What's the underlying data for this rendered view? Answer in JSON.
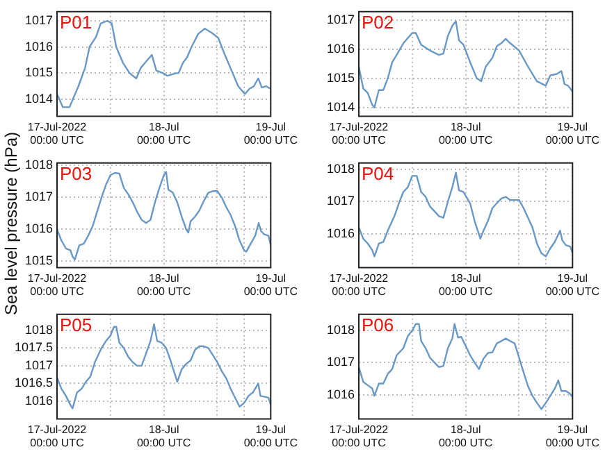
{
  "chart_data": [
    {
      "type": "line",
      "title": "P01",
      "color": "#6a98c4",
      "grid": true,
      "xlim": [
        "2022-07-17T00:00",
        "2022-07-19T00:00"
      ],
      "xticks": [
        {
          "value": "2022-07-17T00:00",
          "label": "17-Jul-2022\n00:00 UTC"
        },
        {
          "value": "2022-07-17T12:00",
          "label": null
        },
        {
          "value": "2022-07-18T00:00",
          "label": "18-Jul\n00:00 UTC"
        },
        {
          "value": "2022-07-18T12:00",
          "label": null
        },
        {
          "value": "2022-07-18T18:00",
          "label": null
        },
        {
          "value": "2022-07-19T00:00",
          "label": "19-Jul\n00:00 UTC"
        }
      ],
      "ylim": [
        1013.35,
        1017.35
      ],
      "yticks": [
        1014,
        1015,
        1016,
        1017
      ],
      "x": [
        "2022-07-17T00:00",
        "2022-07-17T00:48",
        "2022-07-17T01:18",
        "2022-07-17T02:48",
        "2022-07-17T03:18",
        "2022-07-17T04:48",
        "2022-07-17T06:18",
        "2022-07-17T07:18",
        "2022-07-17T08:48",
        "2022-07-17T09:48",
        "2022-07-17T11:18",
        "2022-07-17T12:18",
        "2022-07-17T13:18",
        "2022-07-17T14:48",
        "2022-07-17T16:18",
        "2022-07-17T17:48",
        "2022-07-17T18:48",
        "2022-07-17T19:48",
        "2022-07-17T21:18",
        "2022-07-17T22:18",
        "2022-07-17T23:48",
        "2022-07-18T00:48",
        "2022-07-18T02:48",
        "2022-07-18T03:18",
        "2022-07-18T04:18",
        "2022-07-18T05:12",
        "2022-07-18T06:12",
        "2022-07-18T07:42",
        "2022-07-18T09:12",
        "2022-07-18T10:42",
        "2022-07-18T12:12",
        "2022-07-18T13:42",
        "2022-07-18T15:12",
        "2022-07-18T16:42",
        "2022-07-18T18:12",
        "2022-07-18T19:12",
        "2022-07-18T20:12",
        "2022-07-18T21:12",
        "2022-07-18T22:00",
        "2022-07-18T23:00",
        "2022-07-19T00:00"
      ],
      "values": [
        1014.2,
        1013.9,
        1013.7,
        1013.7,
        1013.9,
        1014.5,
        1015.2,
        1016,
        1016.4,
        1016.9,
        1017,
        1016.9,
        1016,
        1015.4,
        1015,
        1014.8,
        1015.2,
        1015.4,
        1015.7,
        1015.1,
        1015,
        1014.9,
        1015,
        1015,
        1015.4,
        1015.6,
        1016,
        1016.5,
        1016.7,
        1016.55,
        1016.35,
        1015.7,
        1015.1,
        1014.5,
        1014.2,
        1014.4,
        1014.5,
        1014.8,
        1014.45,
        1014.5,
        1014.4
      ]
    },
    {
      "type": "line",
      "title": "P02",
      "color": "#6a98c4",
      "grid": true,
      "xlim": [
        "2022-07-17T00:00",
        "2022-07-19T00:00"
      ],
      "xticks": [
        {
          "value": "2022-07-17T00:00",
          "label": "17-Jul-2022\n00:00 UTC"
        },
        {
          "value": "2022-07-17T12:00",
          "label": null
        },
        {
          "value": "2022-07-18T00:00",
          "label": "18-Jul\n00:00 UTC"
        },
        {
          "value": "2022-07-18T12:00",
          "label": null
        },
        {
          "value": "2022-07-18T18:00",
          "label": null
        },
        {
          "value": "2022-07-19T00:00",
          "label": "19-Jul\n00:00 UTC"
        }
      ],
      "ylim": [
        1013.7,
        1017.28
      ],
      "yticks": [
        1014,
        1015,
        1016,
        1017
      ],
      "x": [
        "2022-07-17T00:00",
        "2022-07-17T01:00",
        "2022-07-17T02:00",
        "2022-07-17T03:00",
        "2022-07-17T03:30",
        "2022-07-17T04:30",
        "2022-07-17T05:30",
        "2022-07-17T06:30",
        "2022-07-17T07:30",
        "2022-07-17T08:30",
        "2022-07-17T10:00",
        "2022-07-17T12:00",
        "2022-07-17T12:48",
        "2022-07-17T14:00",
        "2022-07-17T16:00",
        "2022-07-17T18:00",
        "2022-07-17T19:00",
        "2022-07-17T20:00",
        "2022-07-17T21:00",
        "2022-07-17T21:48",
        "2022-07-17T22:30",
        "2022-07-17T23:30",
        "2022-07-18T01:00",
        "2022-07-18T02:30",
        "2022-07-18T03:30",
        "2022-07-18T04:30",
        "2022-07-18T06:00",
        "2022-07-18T07:00",
        "2022-07-18T08:00",
        "2022-07-18T09:00",
        "2022-07-18T10:00",
        "2022-07-18T12:00",
        "2022-07-18T14:00",
        "2022-07-18T16:00",
        "2022-07-18T18:00",
        "2022-07-18T19:00",
        "2022-07-18T20:30",
        "2022-07-18T21:30",
        "2022-07-18T22:12",
        "2022-07-18T23:00",
        "2022-07-19T00:00"
      ],
      "values": [
        1015.4,
        1014.65,
        1014.5,
        1014.1,
        1014,
        1014.6,
        1014.6,
        1015,
        1015.55,
        1015.8,
        1016.2,
        1016.55,
        1016.55,
        1016.15,
        1015.95,
        1015.8,
        1015.85,
        1016.45,
        1016.8,
        1016.95,
        1016.3,
        1016.15,
        1015.55,
        1015,
        1014.9,
        1015.4,
        1015.7,
        1016.1,
        1016.2,
        1016.35,
        1016.2,
        1015.95,
        1015.4,
        1014.9,
        1014.75,
        1015.1,
        1015.15,
        1015.25,
        1014.8,
        1014.75,
        1014.55
      ]
    },
    {
      "type": "line",
      "title": "P03",
      "ylabel": "Sea level pressure (hPa)",
      "color": "#6a98c4",
      "grid": true,
      "xlim": [
        "2022-07-17T00:00",
        "2022-07-19T00:00"
      ],
      "xticks": [
        {
          "value": "2022-07-17T00:00",
          "label": "17-Jul-2022\n00:00 UTC"
        },
        {
          "value": "2022-07-17T12:00",
          "label": null
        },
        {
          "value": "2022-07-18T00:00",
          "label": "18-Jul\n00:00 UTC"
        },
        {
          "value": "2022-07-18T12:00",
          "label": null
        },
        {
          "value": "2022-07-18T18:00",
          "label": null
        },
        {
          "value": "2022-07-19T00:00",
          "label": "19-Jul\n00:00 UTC"
        }
      ],
      "ylim": [
        1014.8,
        1018.08
      ],
      "yticks": [
        1015,
        1016,
        1017,
        1018
      ],
      "x": [
        "2022-07-17T00:00",
        "2022-07-17T01:00",
        "2022-07-17T02:00",
        "2022-07-17T03:00",
        "2022-07-17T03:30",
        "2022-07-17T04:00",
        "2022-07-17T05:00",
        "2022-07-17T06:00",
        "2022-07-17T07:00",
        "2022-07-17T08:00",
        "2022-07-17T09:00",
        "2022-07-17T10:00",
        "2022-07-17T11:00",
        "2022-07-17T12:00",
        "2022-07-17T13:00",
        "2022-07-17T14:00",
        "2022-07-17T15:00",
        "2022-07-17T16:00",
        "2022-07-17T17:00",
        "2022-07-17T18:00",
        "2022-07-17T19:00",
        "2022-07-17T20:00",
        "2022-07-17T21:00",
        "2022-07-17T22:00",
        "2022-07-17T23:00",
        "2022-07-18T00:00",
        "2022-07-18T00:30",
        "2022-07-18T01:00",
        "2022-07-18T02:00",
        "2022-07-18T03:00",
        "2022-07-18T04:00",
        "2022-07-18T05:00",
        "2022-07-18T05:30",
        "2022-07-18T06:00",
        "2022-07-18T07:00",
        "2022-07-18T08:00",
        "2022-07-18T09:00",
        "2022-07-18T10:00",
        "2022-07-18T11:00",
        "2022-07-18T12:00",
        "2022-07-18T13:00",
        "2022-07-18T14:00",
        "2022-07-18T15:00",
        "2022-07-18T16:00",
        "2022-07-18T17:00",
        "2022-07-18T18:00",
        "2022-07-18T18:30",
        "2022-07-18T19:30",
        "2022-07-18T20:30",
        "2022-07-18T21:18",
        "2022-07-18T21:48",
        "2022-07-18T22:30",
        "2022-07-18T23:30",
        "2022-07-19T00:00"
      ],
      "values": [
        1016,
        1015.65,
        1015.4,
        1015.35,
        1015.15,
        1015.05,
        1015.5,
        1015.55,
        1015.8,
        1016.1,
        1016.55,
        1017,
        1017.4,
        1017.7,
        1017.77,
        1017.75,
        1017.3,
        1017.1,
        1016.85,
        1016.55,
        1016.3,
        1016.2,
        1016.3,
        1016.85,
        1017.3,
        1017.7,
        1017.8,
        1017.25,
        1017.15,
        1016.85,
        1016.4,
        1016,
        1015.9,
        1016.25,
        1016.4,
        1016.6,
        1016.9,
        1017.15,
        1017.2,
        1017.2,
        1017,
        1016.7,
        1016.45,
        1016.1,
        1015.65,
        1015.35,
        1015.3,
        1015.55,
        1015.8,
        1016.2,
        1015.95,
        1015.85,
        1015.8,
        1015.5
      ]
    },
    {
      "type": "line",
      "title": "P04",
      "color": "#6a98c4",
      "grid": true,
      "xlim": [
        "2022-07-17T00:00",
        "2022-07-19T00:00"
      ],
      "xticks": [
        {
          "value": "2022-07-17T00:00",
          "label": "17-Jul-2022\n00:00 UTC"
        },
        {
          "value": "2022-07-17T12:00",
          "label": null
        },
        {
          "value": "2022-07-18T00:00",
          "label": "18-Jul\n00:00 UTC"
        },
        {
          "value": "2022-07-18T12:00",
          "label": null
        },
        {
          "value": "2022-07-18T18:00",
          "label": null
        },
        {
          "value": "2022-07-19T00:00",
          "label": "19-Jul\n00:00 UTC"
        }
      ],
      "ylim": [
        1014.95,
        1018.2
      ],
      "yticks": [
        1016,
        1017,
        1018
      ],
      "x": [
        "2022-07-17T00:00",
        "2022-07-17T01:00",
        "2022-07-17T02:00",
        "2022-07-17T03:00",
        "2022-07-17T03:30",
        "2022-07-17T04:30",
        "2022-07-17T05:30",
        "2022-07-17T06:30",
        "2022-07-17T08:00",
        "2022-07-17T09:00",
        "2022-07-17T10:00",
        "2022-07-17T11:00",
        "2022-07-17T12:00",
        "2022-07-17T13:00",
        "2022-07-17T14:00",
        "2022-07-17T15:00",
        "2022-07-17T16:00",
        "2022-07-17T17:00",
        "2022-07-17T18:00",
        "2022-07-17T19:00",
        "2022-07-17T20:00",
        "2022-07-17T21:00",
        "2022-07-17T21:48",
        "2022-07-17T22:30",
        "2022-07-17T23:30",
        "2022-07-18T01:00",
        "2022-07-18T02:00",
        "2022-07-18T03:18",
        "2022-07-18T04:00",
        "2022-07-18T05:00",
        "2022-07-18T06:00",
        "2022-07-18T07:00",
        "2022-07-18T08:00",
        "2022-07-18T09:00",
        "2022-07-18T10:00",
        "2022-07-18T12:00",
        "2022-07-18T13:00",
        "2022-07-18T14:00",
        "2022-07-18T15:00",
        "2022-07-18T16:00",
        "2022-07-18T17:00",
        "2022-07-18T18:00",
        "2022-07-18T19:00",
        "2022-07-18T20:00",
        "2022-07-18T21:12",
        "2022-07-18T21:42",
        "2022-07-18T22:30",
        "2022-07-18T23:30",
        "2022-07-19T00:00"
      ],
      "values": [
        1016.2,
        1015.85,
        1015.7,
        1015.5,
        1015.3,
        1015.7,
        1015.75,
        1016.1,
        1016.55,
        1016.95,
        1017.3,
        1017.45,
        1017.8,
        1017.8,
        1017.3,
        1017.15,
        1016.85,
        1016.7,
        1016.55,
        1016.5,
        1017,
        1017.45,
        1017.9,
        1017.35,
        1017.3,
        1016.95,
        1016.4,
        1015.85,
        1016.1,
        1016.4,
        1016.8,
        1016.95,
        1017.1,
        1017.15,
        1017.05,
        1017.05,
        1016.8,
        1016.5,
        1016.2,
        1015.7,
        1015.4,
        1015.3,
        1015.55,
        1015.75,
        1016.1,
        1015.8,
        1015.65,
        1015.6,
        1015.4
      ]
    },
    {
      "type": "line",
      "title": "P05",
      "color": "#6a98c4",
      "grid": true,
      "xlim": [
        "2022-07-17T00:00",
        "2022-07-19T00:00"
      ],
      "xticks": [
        {
          "value": "2022-07-17T00:00",
          "label": "17-Jul-2022\n00:00 UTC"
        },
        {
          "value": "2022-07-17T12:00",
          "label": null
        },
        {
          "value": "2022-07-18T00:00",
          "label": "18-Jul\n00:00 UTC"
        },
        {
          "value": "2022-07-18T12:00",
          "label": null
        },
        {
          "value": "2022-07-18T18:00",
          "label": null
        },
        {
          "value": "2022-07-19T00:00",
          "label": "19-Jul\n00:00 UTC"
        }
      ],
      "ylim": [
        1015.5,
        1018.45
      ],
      "yticks": [
        1016,
        1016.5,
        1017,
        1017.5,
        1018
      ],
      "x": [
        "2022-07-17T00:00",
        "2022-07-17T01:00",
        "2022-07-17T02:00",
        "2022-07-17T03:00",
        "2022-07-17T03:30",
        "2022-07-17T04:30",
        "2022-07-17T05:30",
        "2022-07-17T06:30",
        "2022-07-17T07:30",
        "2022-07-17T08:30",
        "2022-07-17T10:00",
        "2022-07-17T11:00",
        "2022-07-17T12:00",
        "2022-07-17T12:48",
        "2022-07-17T13:18",
        "2022-07-17T14:00",
        "2022-07-17T15:00",
        "2022-07-17T16:00",
        "2022-07-17T17:00",
        "2022-07-17T18:00",
        "2022-07-17T19:00",
        "2022-07-17T20:00",
        "2022-07-17T21:00",
        "2022-07-17T21:48",
        "2022-07-17T22:30",
        "2022-07-17T23:30",
        "2022-07-18T00:30",
        "2022-07-18T01:30",
        "2022-07-18T03:00",
        "2022-07-18T04:00",
        "2022-07-18T05:00",
        "2022-07-18T06:00",
        "2022-07-18T07:00",
        "2022-07-18T08:00",
        "2022-07-18T09:00",
        "2022-07-18T10:00",
        "2022-07-18T12:00",
        "2022-07-18T13:00",
        "2022-07-18T14:00",
        "2022-07-18T15:00",
        "2022-07-18T16:00",
        "2022-07-18T17:00",
        "2022-07-18T18:00",
        "2022-07-18T19:00",
        "2022-07-18T20:00",
        "2022-07-18T21:12",
        "2022-07-18T21:42",
        "2022-07-18T22:30",
        "2022-07-18T23:30",
        "2022-07-19T00:00"
      ],
      "values": [
        1016.67,
        1016.35,
        1016.15,
        1015.9,
        1015.8,
        1016.25,
        1016.35,
        1016.55,
        1016.7,
        1017.1,
        1017.5,
        1017.7,
        1017.85,
        1018.1,
        1018.1,
        1017.65,
        1017.5,
        1017.25,
        1017.1,
        1017,
        1017,
        1017.35,
        1017.7,
        1018.17,
        1017.7,
        1017.65,
        1017.5,
        1017.15,
        1016.55,
        1016.9,
        1017.05,
        1017.15,
        1017.45,
        1017.55,
        1017.55,
        1017.5,
        1017.1,
        1016.85,
        1016.65,
        1016.35,
        1016.1,
        1015.85,
        1015.95,
        1016.15,
        1016.25,
        1016.5,
        1016.15,
        1016.13,
        1016.1,
        1015.9
      ]
    },
    {
      "type": "line",
      "title": "P06",
      "color": "#6a98c4",
      "grid": true,
      "xlim": [
        "2022-07-17T00:00",
        "2022-07-19T00:00"
      ],
      "xticks": [
        {
          "value": "2022-07-17T00:00",
          "label": "17-Jul-2022\n00:00 UTC"
        },
        {
          "value": "2022-07-17T12:00",
          "label": null
        },
        {
          "value": "2022-07-18T00:00",
          "label": "18-Jul\n00:00 UTC"
        },
        {
          "value": "2022-07-18T12:00",
          "label": null
        },
        {
          "value": "2022-07-18T18:00",
          "label": null
        },
        {
          "value": "2022-07-19T00:00",
          "label": "19-Jul\n00:00 UTC"
        }
      ],
      "ylim": [
        1015.25,
        1018.5
      ],
      "yticks": [
        1016,
        1017,
        1018
      ],
      "x": [
        "2022-07-17T00:00",
        "2022-07-17T01:00",
        "2022-07-17T02:00",
        "2022-07-17T03:00",
        "2022-07-17T03:30",
        "2022-07-17T04:30",
        "2022-07-17T05:30",
        "2022-07-17T06:30",
        "2022-07-17T07:30",
        "2022-07-17T08:30",
        "2022-07-17T10:00",
        "2022-07-17T11:00",
        "2022-07-17T12:00",
        "2022-07-17T12:48",
        "2022-07-17T13:30",
        "2022-07-17T14:00",
        "2022-07-17T15:00",
        "2022-07-17T16:00",
        "2022-07-17T17:00",
        "2022-07-17T18:00",
        "2022-07-17T19:00",
        "2022-07-17T20:00",
        "2022-07-17T21:00",
        "2022-07-17T21:30",
        "2022-07-17T22:18",
        "2022-07-17T23:00",
        "2022-07-18T00:00",
        "2022-07-18T01:00",
        "2022-07-18T02:00",
        "2022-07-18T03:00",
        "2022-07-18T04:00",
        "2022-07-18T05:00",
        "2022-07-18T06:00",
        "2022-07-18T07:00",
        "2022-07-18T08:00",
        "2022-07-18T09:00",
        "2022-07-18T10:00",
        "2022-07-18T11:00",
        "2022-07-18T12:00",
        "2022-07-18T13:00",
        "2022-07-18T14:00",
        "2022-07-18T15:00",
        "2022-07-18T16:00",
        "2022-07-18T17:00",
        "2022-07-18T18:00",
        "2022-07-18T19:00",
        "2022-07-18T20:00",
        "2022-07-18T20:48",
        "2022-07-18T21:30",
        "2022-07-18T22:30",
        "2022-07-18T23:18",
        "2022-07-19T00:00"
      ],
      "values": [
        1016.86,
        1016.4,
        1016.3,
        1016.2,
        1015.97,
        1016.35,
        1016.35,
        1016.65,
        1016.8,
        1017.23,
        1017.45,
        1017.82,
        1018,
        1018.2,
        1018.2,
        1017.67,
        1017.45,
        1017.15,
        1017,
        1016.86,
        1016.9,
        1017.45,
        1017.75,
        1018.2,
        1017.78,
        1017.8,
        1017.52,
        1017.23,
        1017,
        1016.8,
        1017.12,
        1017.3,
        1017.32,
        1017.6,
        1017.67,
        1017.75,
        1017.67,
        1017.6,
        1017.15,
        1016.7,
        1016.27,
        1015.97,
        1015.75,
        1015.56,
        1015.75,
        1015.97,
        1016.19,
        1016.45,
        1016.12,
        1016.12,
        1016.05,
        1015.94
      ]
    }
  ]
}
